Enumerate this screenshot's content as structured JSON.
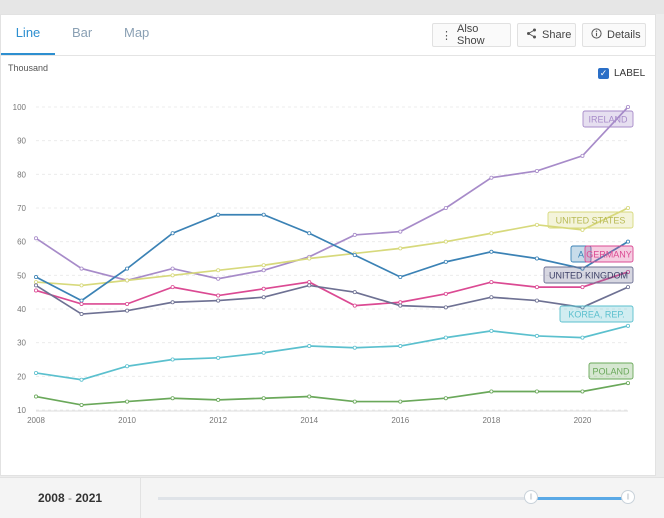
{
  "tabs": [
    {
      "label": "Line"
    },
    {
      "label": "Bar"
    },
    {
      "label": "Map"
    }
  ],
  "toolbar": {
    "also_show": "Also Show",
    "share": "Share",
    "details": "Details"
  },
  "label_toggle": {
    "label": "LABEL",
    "checked": true
  },
  "range": {
    "start": "2008",
    "sep": "-",
    "end": "2021"
  },
  "chart_data": {
    "type": "line",
    "ylabel": "Thousand",
    "xlabel": "",
    "ylim": [
      10,
      100
    ],
    "xlim": [
      2008,
      2021
    ],
    "yticks": [
      10,
      20,
      30,
      40,
      50,
      60,
      70,
      80,
      90,
      100
    ],
    "xticks": [
      2008,
      2010,
      2012,
      2014,
      2016,
      2018,
      2020
    ],
    "grid": true,
    "x": [
      2008,
      2009,
      2010,
      2011,
      2012,
      2013,
      2014,
      2015,
      2016,
      2017,
      2018,
      2019,
      2020,
      2021
    ],
    "series": [
      {
        "name": "IRELAND",
        "color": "#a78bc9",
        "values": [
          61,
          52,
          48.5,
          52,
          49,
          51.5,
          55.5,
          62,
          63,
          70,
          79,
          81,
          85.5,
          100
        ]
      },
      {
        "name": "UNITED STATES",
        "color": "#d7d97c",
        "values": [
          48,
          47,
          48.5,
          50,
          51.5,
          53,
          55,
          56.5,
          58,
          60,
          62.5,
          65,
          63.5,
          70
        ]
      },
      {
        "name": "AUSTRALIA",
        "color": "#3b82b5",
        "values": [
          49.5,
          42.5,
          52,
          62.5,
          68,
          68,
          62.5,
          56,
          49.5,
          54,
          57,
          55,
          52,
          60
        ]
      },
      {
        "name": "GERMANY",
        "color": "#db4a93",
        "values": [
          45.5,
          41.5,
          41.5,
          46.5,
          44,
          46,
          48,
          41,
          42,
          44.5,
          48,
          46.5,
          46.5,
          51
        ]
      },
      {
        "name": "UNITED KINGDOM",
        "color": "#6e7193",
        "values": [
          47,
          38.5,
          39.5,
          42,
          42.5,
          43.5,
          47,
          45,
          41,
          40.5,
          43.5,
          42.5,
          40.5,
          46.5
        ]
      },
      {
        "name": "KOREA, REP.",
        "color": "#5bc0ce",
        "values": [
          21,
          19,
          23,
          25,
          25.5,
          27,
          29,
          28.5,
          29,
          31.5,
          33.5,
          32,
          31.5,
          35
        ]
      },
      {
        "name": "POLAND",
        "color": "#6aa85a",
        "values": [
          14,
          11.5,
          12.5,
          13.5,
          13,
          13.5,
          14,
          12.5,
          12.5,
          13.5,
          15.5,
          15.5,
          15.5,
          18
        ]
      }
    ],
    "labels": [
      {
        "series": "IRELAND",
        "text": "IRELAND"
      },
      {
        "series": "UNITED STATES",
        "text": "UNITED STATES"
      },
      {
        "series": "AUSTRALIA",
        "text": "A"
      },
      {
        "series": "GERMANY",
        "text": "GERMANY"
      },
      {
        "series": "UNITED KINGDOM",
        "text": "UNITED KINGDOM"
      },
      {
        "series": "KOREA, REP.",
        "text": "KOREA, REP."
      },
      {
        "series": "POLAND",
        "text": "POLAND"
      }
    ]
  }
}
